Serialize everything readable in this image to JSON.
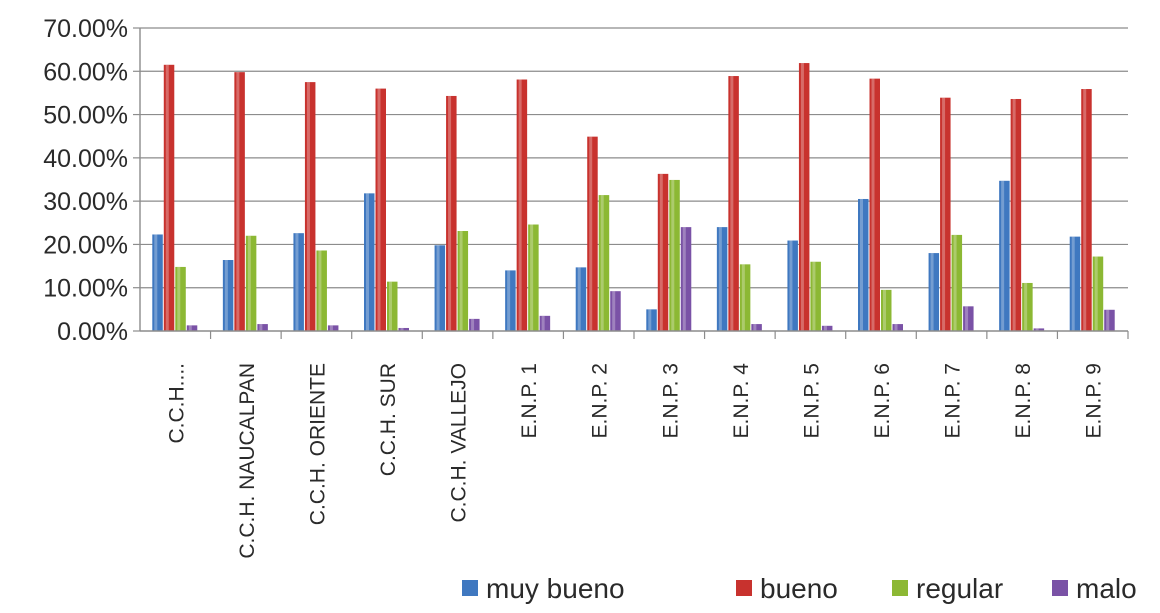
{
  "chart_data": {
    "type": "bar",
    "title": "",
    "xlabel": "",
    "ylabel": "",
    "ylim": [
      0,
      70
    ],
    "y_ticks": [
      "0.00%",
      "10.00%",
      "20.00%",
      "30.00%",
      "40.00%",
      "50.00%",
      "60.00%",
      "70.00%"
    ],
    "grid": true,
    "legend_position": "bottom-right",
    "categories": [
      "C.C.H....",
      "C.C.H.  NAUCALPAN",
      "C.C.H.  ORIENTE",
      "C.C.H.  SUR",
      "C.C.H.  VALLEJO",
      "E.N.P. 1",
      "E.N.P. 2",
      "E.N.P. 3",
      "E.N.P. 4",
      "E.N.P. 5",
      "E.N.P. 6",
      "E.N.P. 7",
      "E.N.P. 8",
      "E.N.P. 9"
    ],
    "series": [
      {
        "name": "muy bueno",
        "color": "#3f78c0",
        "values": [
          22.3,
          16.4,
          22.6,
          31.8,
          19.8,
          14.0,
          14.7,
          5.0,
          24.0,
          20.9,
          30.5,
          18.0,
          34.7,
          21.8
        ]
      },
      {
        "name": "bueno",
        "color": "#c8322e",
        "values": [
          61.5,
          59.8,
          57.5,
          56.0,
          54.3,
          58.1,
          44.9,
          36.3,
          58.9,
          61.9,
          58.3,
          53.9,
          53.6,
          55.9
        ]
      },
      {
        "name": "regular",
        "color": "#8cb834",
        "values": [
          14.8,
          22.0,
          18.6,
          11.4,
          23.1,
          24.6,
          31.4,
          34.9,
          15.4,
          16.0,
          9.5,
          22.2,
          11.1,
          17.2
        ]
      },
      {
        "name": "malo",
        "color": "#7a52a6",
        "values": [
          1.3,
          1.6,
          1.3,
          0.7,
          2.8,
          3.5,
          9.2,
          24.0,
          1.6,
          1.2,
          1.6,
          5.7,
          0.6,
          4.9
        ]
      }
    ]
  }
}
